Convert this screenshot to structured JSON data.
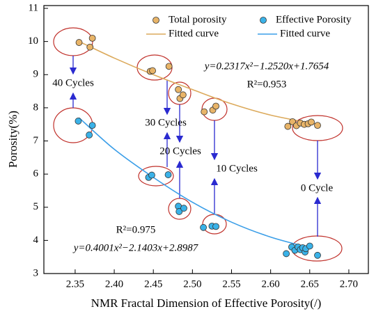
{
  "chart_data": {
    "type": "scatter",
    "x_label": "NMR Fractal Dimension of Effective Porosity(/)",
    "y_label": "Porosity(%)",
    "xlim": [
      2.31,
      2.725
    ],
    "ylim": [
      3,
      11
    ],
    "xticks": [
      2.35,
      {
        "value": 2.4,
        "label": "2.40"
      },
      2.45,
      {
        "value": 2.5,
        "label": "2.50"
      },
      2.55,
      {
        "value": 2.6,
        "label": "2.60"
      },
      2.65,
      {
        "value": 2.7,
        "label": "2.70"
      }
    ],
    "yticks": [
      3,
      4,
      5,
      6,
      7,
      8,
      9,
      10,
      11
    ],
    "series": [
      {
        "name": "Total porosity",
        "type": "scatter",
        "color": "#e8b468",
        "x": [
          2.355,
          2.372,
          2.369,
          2.446,
          2.449,
          2.47,
          2.482,
          2.484,
          2.488,
          2.515,
          2.526,
          2.53,
          2.622,
          2.628,
          2.633,
          2.638,
          2.643,
          2.648,
          2.652,
          2.66
        ],
        "values": [
          9.97,
          10.1,
          9.83,
          9.1,
          9.12,
          9.25,
          8.55,
          8.28,
          8.39,
          7.88,
          7.93,
          8.05,
          7.44,
          7.58,
          7.46,
          7.54,
          7.5,
          7.52,
          7.57,
          7.47
        ]
      },
      {
        "name": "Effective Porosity",
        "type": "scatter",
        "color": "#3ab2e8",
        "x": [
          2.354,
          2.372,
          2.368,
          2.444,
          2.448,
          2.469,
          2.482,
          2.483,
          2.489,
          2.514,
          2.525,
          2.53,
          2.62,
          2.627,
          2.631,
          2.635,
          2.638,
          2.641,
          2.644,
          2.645,
          2.65,
          2.66
        ],
        "values": [
          7.6,
          7.47,
          7.18,
          5.9,
          5.97,
          5.98,
          5.03,
          4.87,
          4.97,
          4.39,
          4.43,
          4.42,
          3.6,
          3.8,
          3.7,
          3.8,
          3.72,
          3.78,
          3.65,
          3.75,
          3.83,
          3.55
        ]
      },
      {
        "name": "Fitted curve",
        "type": "line",
        "color": "#dcaa5c",
        "x": [
          2.355,
          2.4,
          2.45,
          2.5,
          2.55,
          2.6,
          2.66
        ],
        "values": [
          10.0,
          9.5,
          9.0,
          8.55,
          8.12,
          7.78,
          7.5
        ]
      },
      {
        "name": "Fitted curve",
        "type": "line",
        "color": "#3a9ee8",
        "x": [
          2.355,
          2.4,
          2.45,
          2.5,
          2.55,
          2.6,
          2.65
        ],
        "values": [
          7.7,
          6.75,
          5.9,
          5.15,
          4.55,
          4.1,
          3.78
        ]
      }
    ],
    "annotations": [
      "40 Cycles",
      "30 Cycles",
      "20 Cycles",
      "10 Cycles",
      "0 Cycle",
      "y=0.2317x²−1.2520x+1.7654",
      "R²=0.953",
      "R²=0.975",
      "y=0.4001x²−2.1403x+2.8987"
    ]
  }
}
